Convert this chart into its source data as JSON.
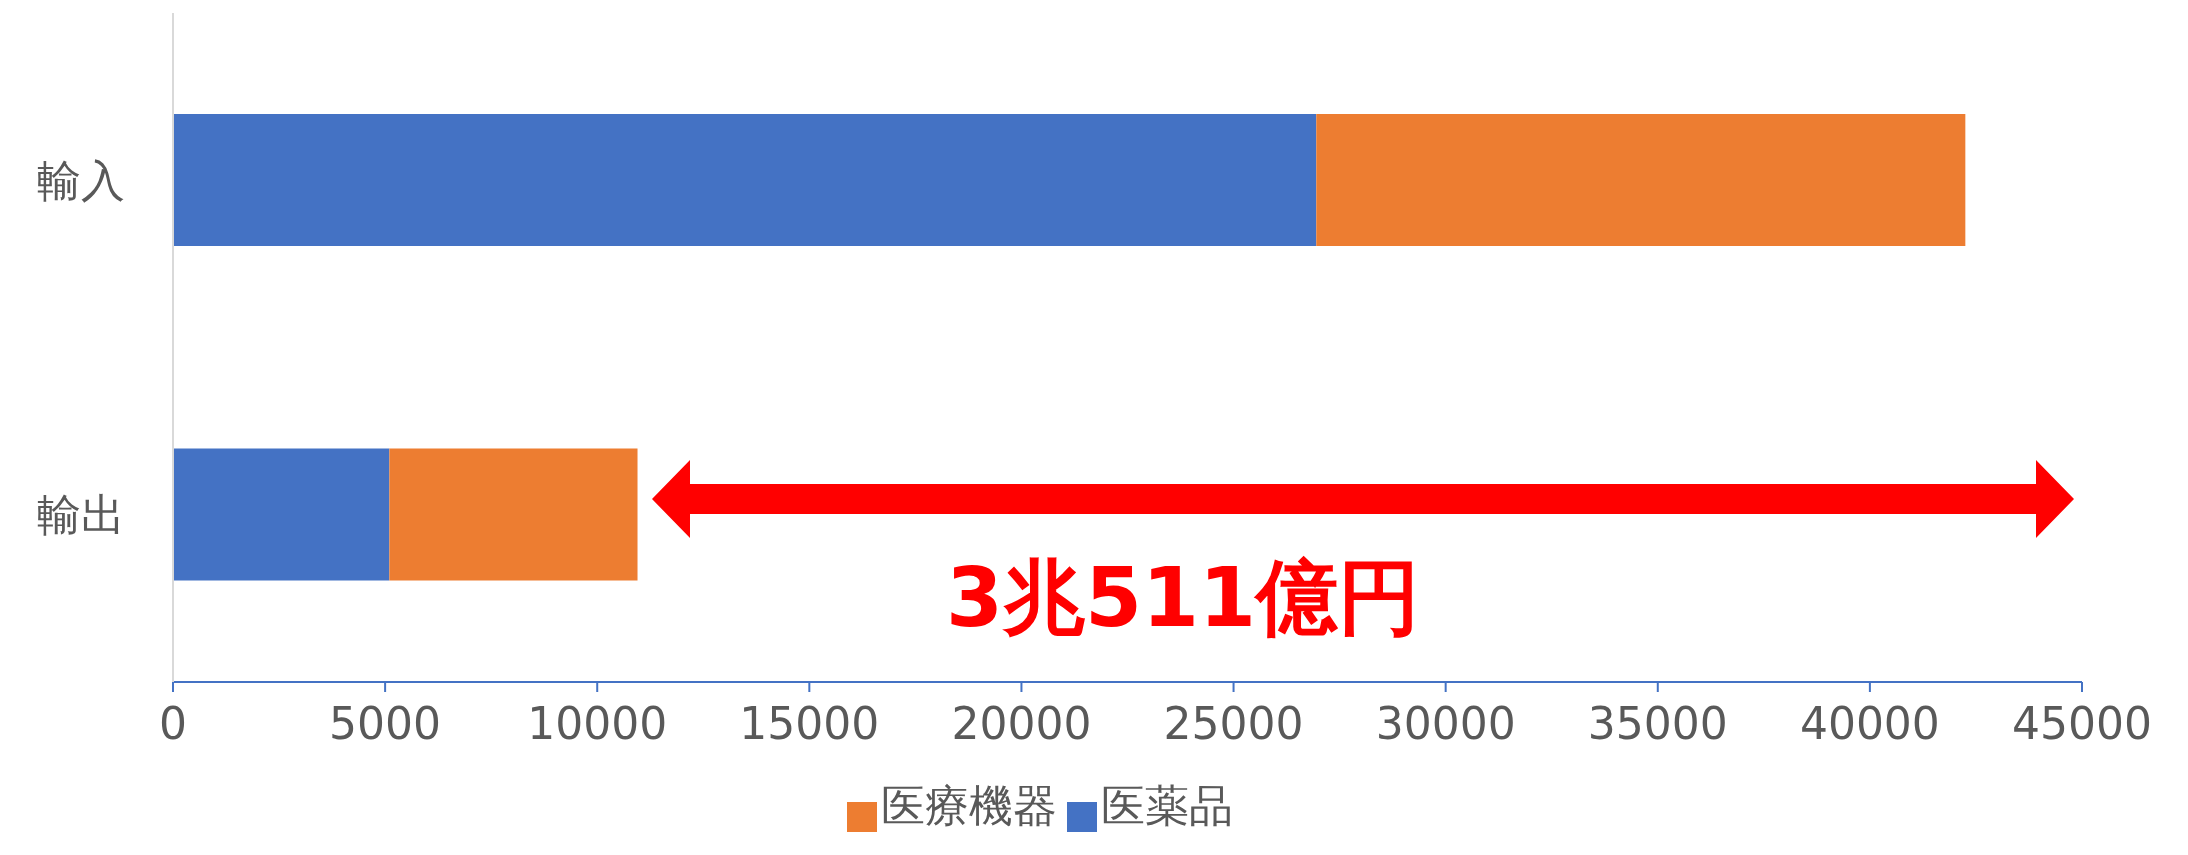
{
  "chart_data": {
    "type": "bar",
    "orientation": "horizontal",
    "stacked": true,
    "categories": [
      "輸入",
      "輸出"
    ],
    "series": [
      {
        "name": "医薬品",
        "color": "#4472c4",
        "values": [
          26950,
          5100
        ]
      },
      {
        "name": "医療機器",
        "color": "#ed7d31",
        "values": [
          15300,
          5850
        ]
      }
    ],
    "xlim": [
      0,
      45000
    ],
    "xticks": [
      0,
      5000,
      10000,
      15000,
      20000,
      25000,
      30000,
      35000,
      40000,
      45000
    ],
    "legend": "bottom",
    "annotations": [
      "3兆511億円"
    ]
  }
}
